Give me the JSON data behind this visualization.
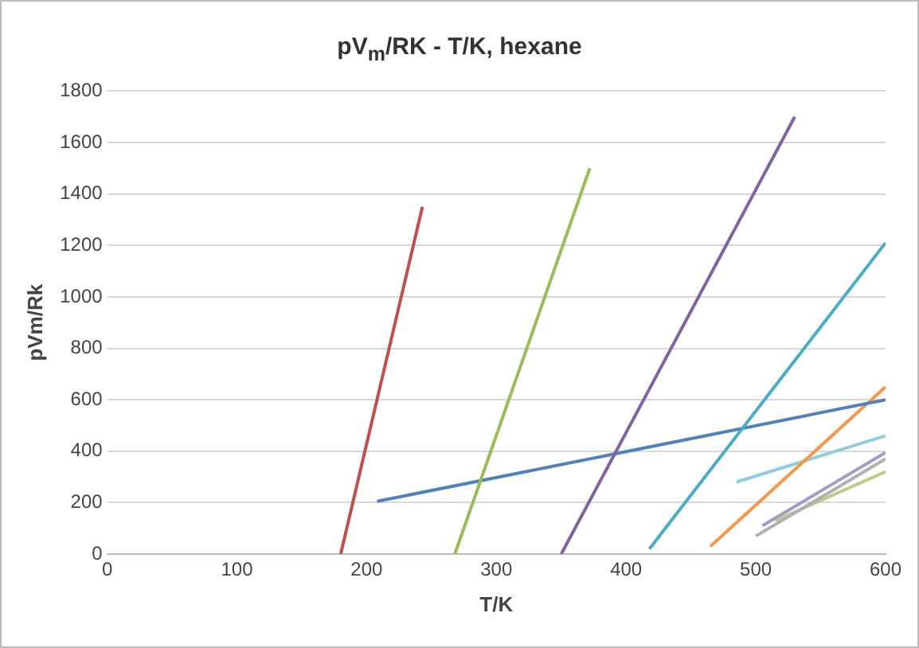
{
  "chart_data": {
    "type": "line",
    "title": "pV$_{m}$/RK - T/K, hexane",
    "xlabel": "T/K",
    "ylabel": "pVm/Rk",
    "xlim": [
      0,
      600
    ],
    "xticks": [
      0,
      100,
      200,
      300,
      400,
      500,
      600
    ],
    "ylim": [
      0,
      1800
    ],
    "yticks": [
      0,
      200,
      400,
      600,
      800,
      1000,
      1200,
      1400,
      1600,
      1800
    ],
    "grid": "y",
    "legend": false,
    "marker": "none",
    "line_style": "solid",
    "series": [
      {
        "color": "#c0504d",
        "x": [
          180,
          243
        ],
        "values": [
          0,
          1350
        ]
      },
      {
        "color": "#9bbb59",
        "x": [
          268,
          372
        ],
        "values": [
          0,
          1500
        ]
      },
      {
        "color": "#8064a2",
        "x": [
          350,
          530
        ],
        "values": [
          0,
          1700
        ]
      },
      {
        "color": "#4bacc6",
        "x": [
          418,
          600
        ],
        "values": [
          20,
          1210
        ]
      },
      {
        "color": "#4f81bd",
        "x": [
          208,
          600
        ],
        "values": [
          205,
          600
        ]
      },
      {
        "color": "#f79646",
        "x": [
          465,
          600
        ],
        "values": [
          30,
          650
        ]
      },
      {
        "color": "#93cddd",
        "x": [
          485,
          600
        ],
        "values": [
          280,
          460
        ]
      },
      {
        "color": "#a39cc9",
        "x": [
          505,
          600
        ],
        "values": [
          110,
          395
        ]
      },
      {
        "color": "#b0b0b0",
        "x": [
          500,
          600
        ],
        "values": [
          70,
          370
        ]
      },
      {
        "color": "#c3c88a",
        "x": [
          515,
          600
        ],
        "values": [
          130,
          320
        ]
      }
    ]
  }
}
